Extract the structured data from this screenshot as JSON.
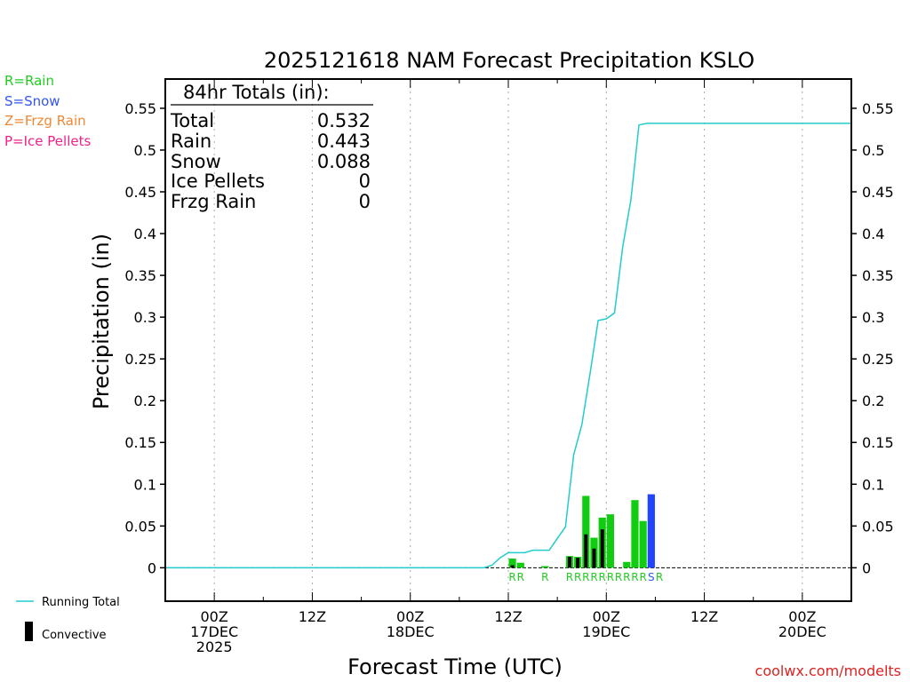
{
  "chart_data": {
    "type": "bar",
    "title": "2025121618 NAM Forecast Precipitation KSLO",
    "xlabel": "Forecast Time (UTC)",
    "ylabel": "Precipitation (in)",
    "ylim": [
      -0.04,
      0.585
    ],
    "xlim_hours": [
      -6,
      78
    ],
    "y_ticks": [
      0,
      0.05,
      0.1,
      0.15,
      0.2,
      0.25,
      0.3,
      0.35,
      0.4,
      0.45,
      0.5,
      0.55
    ],
    "y_tick_labels": [
      "0",
      "0.05",
      "0.1",
      "0.15",
      "0.2",
      "0.25",
      "0.3",
      "0.35",
      "0.4",
      "0.45",
      "0.5",
      "0.55"
    ],
    "x_ticks": [
      {
        "hour": 0,
        "lines": [
          "00Z",
          "17DEC",
          "2025"
        ]
      },
      {
        "hour": 12,
        "lines": [
          "12Z"
        ]
      },
      {
        "hour": 24,
        "lines": [
          "00Z",
          "18DEC"
        ]
      },
      {
        "hour": 36,
        "lines": [
          "12Z"
        ]
      },
      {
        "hour": 48,
        "lines": [
          "00Z",
          "19DEC"
        ]
      },
      {
        "hour": 60,
        "lines": [
          "12Z"
        ]
      },
      {
        "hour": 72,
        "lines": [
          "00Z",
          "20DEC"
        ]
      }
    ],
    "precip_type_legend": [
      {
        "code": "R",
        "label": "R=Rain",
        "color": "#22cc22"
      },
      {
        "code": "S",
        "label": "S=Snow",
        "color": "#3355ee"
      },
      {
        "code": "Z",
        "label": "Z=Frzg Rain",
        "color": "#ee8833"
      },
      {
        "code": "P",
        "label": "P=Ice Pellets",
        "color": "#ee2288"
      }
    ],
    "bar_colors": {
      "R": "#11cc11",
      "S": "#2244ff",
      "convective": "#000000"
    },
    "line_color": "#22cccc",
    "bars": [
      {
        "hour": 36,
        "value": 0.011,
        "convective": 0.003,
        "type": "R"
      },
      {
        "hour": 37,
        "value": 0.006,
        "convective": 0.0,
        "type": "R"
      },
      {
        "hour": 40,
        "value": 0.002,
        "convective": 0.0,
        "type": "R"
      },
      {
        "hour": 43,
        "value": 0.014,
        "convective": 0.013,
        "type": "R"
      },
      {
        "hour": 44,
        "value": 0.013,
        "convective": 0.012,
        "type": "R"
      },
      {
        "hour": 45,
        "value": 0.086,
        "convective": 0.04,
        "type": "R"
      },
      {
        "hour": 46,
        "value": 0.036,
        "convective": 0.023,
        "type": "R"
      },
      {
        "hour": 47,
        "value": 0.06,
        "convective": 0.046,
        "type": "R"
      },
      {
        "hour": 48,
        "value": 0.064,
        "convective": 0.0,
        "type": "R"
      },
      {
        "hour": 50,
        "value": 0.007,
        "convective": 0.0,
        "type": "R"
      },
      {
        "hour": 51,
        "value": 0.081,
        "convective": 0.0,
        "type": "R"
      },
      {
        "hour": 52,
        "value": 0.056,
        "convective": 0.0,
        "type": "R"
      },
      {
        "hour": 53,
        "value": 0.088,
        "convective": 0.0,
        "type": "S"
      }
    ],
    "type_label_string": "RR R RRRRRRRRRRSR",
    "type_labels": [
      {
        "hour": 36,
        "code": "R"
      },
      {
        "hour": 37,
        "code": "R"
      },
      {
        "hour": 40,
        "code": "R"
      },
      {
        "hour": 43,
        "code": "R"
      },
      {
        "hour": 44,
        "code": "R"
      },
      {
        "hour": 45,
        "code": "R"
      },
      {
        "hour": 46,
        "code": "R"
      },
      {
        "hour": 47,
        "code": "R"
      },
      {
        "hour": 48,
        "code": "R"
      },
      {
        "hour": 49,
        "code": "R"
      },
      {
        "hour": 50,
        "code": "R"
      },
      {
        "hour": 51,
        "code": "R"
      },
      {
        "hour": 52,
        "code": "R"
      },
      {
        "hour": 53,
        "code": "S"
      },
      {
        "hour": 54,
        "code": "R"
      }
    ],
    "running_total": {
      "name": "Running Total",
      "x": [
        -6,
        33,
        34,
        35,
        36,
        37,
        38,
        39,
        40,
        41,
        42,
        43,
        44,
        45,
        46,
        47,
        48,
        49,
        50,
        51,
        52,
        53,
        54,
        55,
        60,
        72,
        78
      ],
      "y": [
        0,
        0,
        0.003,
        0.012,
        0.018,
        0.018,
        0.018,
        0.021,
        0.021,
        0.021,
        0.035,
        0.049,
        0.135,
        0.171,
        0.232,
        0.296,
        0.298,
        0.305,
        0.384,
        0.44,
        0.53,
        0.532,
        0.532,
        0.532,
        0.532,
        0.532,
        0.532
      ]
    },
    "totals_box": {
      "header": "84hr Totals (in):",
      "rows": [
        {
          "label": "Total",
          "value": "0.532"
        },
        {
          "label": "Rain",
          "value": "0.443"
        },
        {
          "label": "Snow",
          "value": "0.088"
        },
        {
          "label": "Ice Pellets",
          "value": "0"
        },
        {
          "label": "Frzg Rain",
          "value": "0"
        }
      ]
    },
    "bottom_legend": {
      "running_total_label": "Running Total",
      "convective_label": "Convective"
    },
    "credit": "coolwx.com/modelts"
  }
}
